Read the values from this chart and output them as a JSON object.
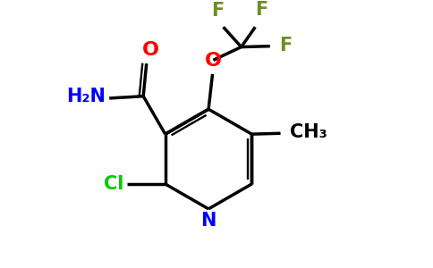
{
  "bg_color": "#ffffff",
  "bond_color": "#000000",
  "n_color": "#0000ff",
  "o_color": "#ff0000",
  "cl_color": "#00cc00",
  "f_color": "#6b8e23",
  "h2n_color": "#0000ff",
  "line_width": 2.5,
  "figsize": [
    4.84,
    3.0
  ],
  "dpi": 100,
  "xlim": [
    0,
    10
  ],
  "ylim": [
    0,
    6.2
  ]
}
